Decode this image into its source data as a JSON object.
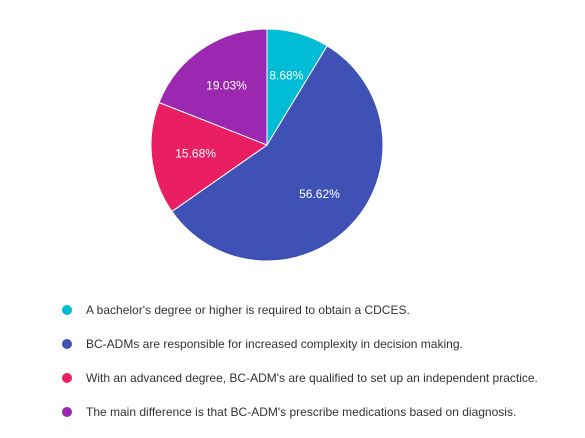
{
  "chart_data": {
    "type": "pie",
    "title": "",
    "legend_position": "bottom",
    "slices": [
      {
        "label": "A bachelor's degree or higher is required to obtain a CDCES.",
        "value": 8.68,
        "value_label": "8.68%",
        "color": "#00bcd4"
      },
      {
        "label": "BC-ADMs are responsible for increased complexity in decision making.",
        "value": 56.62,
        "value_label": "56.62%",
        "color": "#3f51b5"
      },
      {
        "label": "With an advanced degree, BC-ADM's are qualified to set up an independent practice.",
        "value": 15.68,
        "value_label": "15.68%",
        "color": "#e91e63"
      },
      {
        "label": "The main difference is that BC-ADM's prescribe medications based on diagnosis.",
        "value": 19.03,
        "value_label": "19.03%",
        "color": "#9c27b0"
      }
    ]
  }
}
